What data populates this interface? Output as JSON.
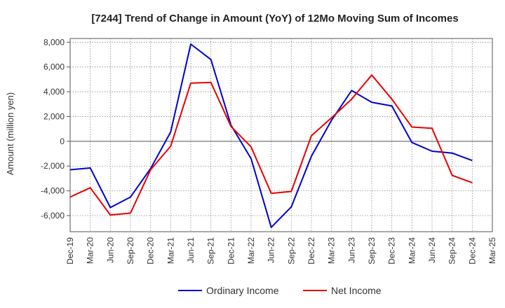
{
  "chart_data": {
    "type": "line",
    "title": "[7244]  Trend of Change in Amount (YoY) of 12Mo Moving Sum of Incomes",
    "xlabel": "",
    "ylabel": "Amount (million yen)",
    "ylim": [
      -7300,
      8300
    ],
    "yticks": [
      8000,
      6000,
      4000,
      2000,
      0,
      -2000,
      -4000,
      -6000
    ],
    "ytick_labels": [
      "8,000",
      "6,000",
      "4,000",
      "2,000",
      "0",
      "-2,000",
      "-4,000",
      "-6,000"
    ],
    "categories": [
      "Dec-19",
      "Mar-20",
      "Jun-20",
      "Sep-20",
      "Dec-20",
      "Mar-21",
      "Jun-21",
      "Sep-21",
      "Dec-21",
      "Mar-22",
      "Jun-22",
      "Sep-22",
      "Dec-22",
      "Mar-23",
      "Jun-23",
      "Sep-23",
      "Dec-23",
      "Mar-24",
      "Jun-24",
      "Sep-24",
      "Dec-24",
      "Mar-25"
    ],
    "grid": true,
    "legend": "bottom-center",
    "series": [
      {
        "name": "Ordinary Income",
        "color": "#0000cc",
        "values": [
          -2300,
          -2150,
          -5350,
          -4500,
          -2200,
          750,
          7850,
          6600,
          1300,
          -1400,
          -6950,
          -5300,
          -1200,
          1700,
          4100,
          3150,
          2850,
          -100,
          -800,
          -950,
          -1550,
          null
        ]
      },
      {
        "name": "Net Income",
        "color": "#e60000",
        "values": [
          -4500,
          -3750,
          -5950,
          -5800,
          -2300,
          -400,
          4700,
          4750,
          1200,
          -450,
          -4200,
          -4050,
          450,
          1900,
          3400,
          5350,
          3400,
          1150,
          1050,
          -2750,
          -3350,
          null
        ]
      }
    ]
  }
}
